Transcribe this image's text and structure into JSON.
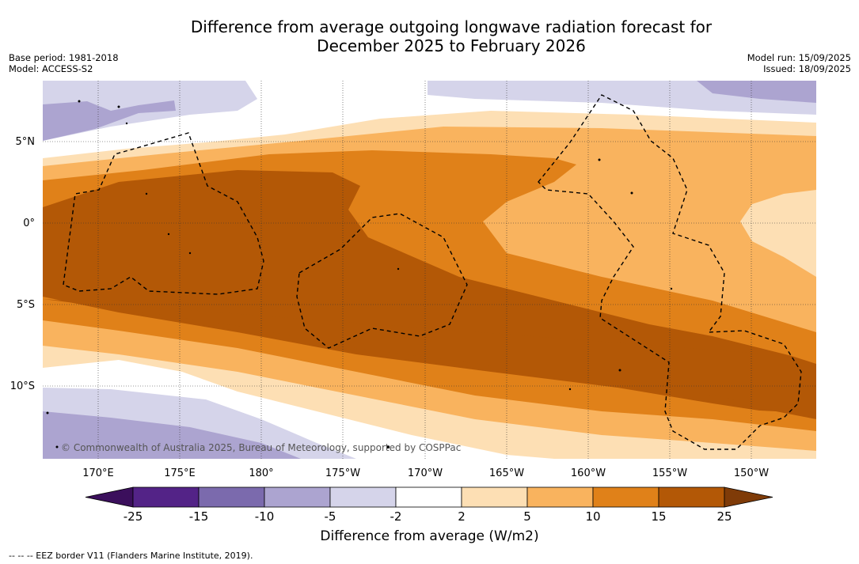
{
  "title_line1": "Difference from average outgoing longwave radiation forecast for",
  "title_line2": "December 2025 to February 2026",
  "base_period": "Base period: 1981-2018",
  "model": "Model: ACCESS-S2",
  "model_run": "Model run: 15/09/2025",
  "issued": "Issued: 18/09/2025",
  "copyright": "© Commonwealth of Australia 2025, Bureau of Meteorology, supported by COSPPac",
  "lat_labels": [
    "5°N",
    "0°",
    "5°S",
    "10°S"
  ],
  "lon_labels": [
    "170°E",
    "175°E",
    "180°",
    "175°W",
    "170°W",
    "165°W",
    "160°W",
    "155°W",
    "150°W"
  ],
  "colorbar": {
    "title": "Difference from average (W/m2)",
    "ticks": [
      "-25",
      "-15",
      "-10",
      "-5",
      "-2",
      "2",
      "5",
      "10",
      "15",
      "25"
    ],
    "colors": [
      "#3b0f5c",
      "#532387",
      "#7b6aad",
      "#aca4d0",
      "#d5d4ea",
      "#ffffff",
      "#fddfb4",
      "#f9b35e",
      "#e08119",
      "#b35806",
      "#7f3b08"
    ]
  },
  "footnote": "--  --  -- EEZ border V11 (Flanders Marine Institute, 2019)."
}
